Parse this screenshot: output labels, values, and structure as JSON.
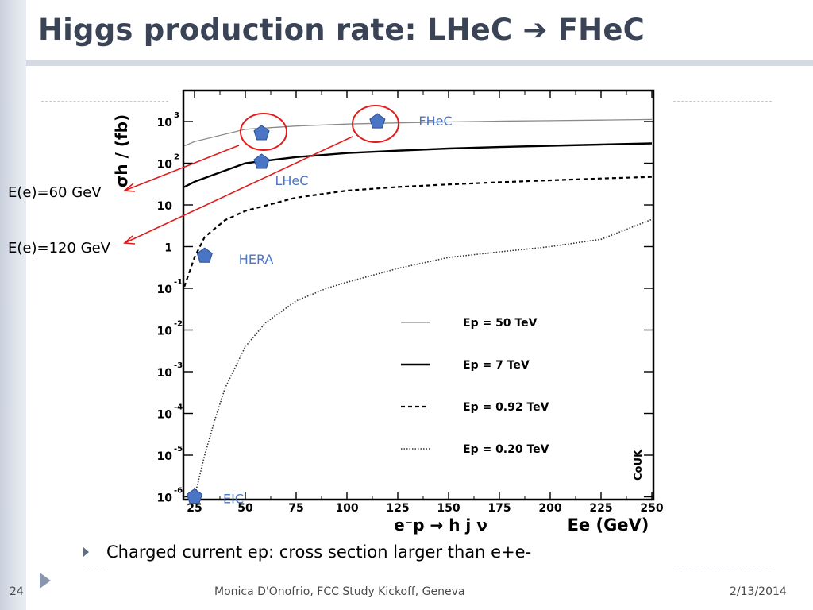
{
  "slide": {
    "title": "Higgs production rate: LHeC ➔ FHeC",
    "callouts": [
      "E(e)=60 GeV",
      "E(e)=120 GeV"
    ],
    "bullet": "Charged current ep: cross section larger than e+e-",
    "footer": {
      "page_number": "24",
      "center": "Monica D'Onofrio, FCC Study Kickoff, Geneva",
      "date": "2/13/2014"
    },
    "colors": {
      "title": "#3a4456",
      "annotation_red": "#e21b1b",
      "marker_blue": "#4a74c4",
      "label_blue": "#4a74c4"
    }
  },
  "chart_data": {
    "type": "line",
    "y_title": "σh / (fb)",
    "x_title_process": "e⁻p → h j ν",
    "x_title_unit": "Ee (GeV)",
    "x_ticks": [
      25,
      50,
      75,
      100,
      125,
      150,
      175,
      200,
      225,
      250
    ],
    "y_ticks": [
      {
        "base": "10",
        "exp": "3",
        "v": 1000
      },
      {
        "base": "10",
        "exp": "2",
        "v": 100
      },
      {
        "base": "10",
        "exp": "",
        "v": 10
      },
      {
        "base": "1",
        "exp": "",
        "v": 1
      },
      {
        "base": "10",
        "exp": "-1",
        "v": 0.1
      },
      {
        "base": "10",
        "exp": "-2",
        "v": 0.01
      },
      {
        "base": "10",
        "exp": "-3",
        "v": 0.001
      },
      {
        "base": "10",
        "exp": "-4",
        "v": 0.0001
      },
      {
        "base": "10",
        "exp": "-5",
        "v": 1e-05
      },
      {
        "base": "10",
        "exp": "-6",
        "v": 1e-06
      }
    ],
    "xlim": [
      20,
      250
    ],
    "ylog": true,
    "ylim": [
      1e-06,
      3000
    ],
    "watermark": "CoUK",
    "series": [
      {
        "name": "Ep = 50 TeV",
        "style": "thin-solid",
        "x": [
          20,
          25,
          50,
          75,
          100,
          125,
          150,
          175,
          200,
          225,
          250
        ],
        "y": [
          260,
          330,
          650,
          780,
          870,
          930,
          980,
          1020,
          1050,
          1080,
          1120
        ]
      },
      {
        "name": "Ep = 7 TeV",
        "style": "thick-solid",
        "x": [
          20,
          25,
          50,
          75,
          100,
          125,
          150,
          175,
          200,
          225,
          250
        ],
        "y": [
          27,
          36,
          100,
          140,
          175,
          200,
          225,
          245,
          262,
          280,
          300
        ]
      },
      {
        "name": "Ep = 0.92 TeV",
        "style": "dashed",
        "x": [
          20,
          25,
          30,
          40,
          50,
          75,
          100,
          125,
          150,
          175,
          200,
          225,
          250
        ],
        "y": [
          0.11,
          0.55,
          1.7,
          4.3,
          7.2,
          15,
          22,
          27,
          31,
          35,
          39,
          43,
          47
        ]
      },
      {
        "name": "Ep = 0.20 TeV",
        "style": "dotted",
        "x": [
          20,
          25,
          30,
          35,
          40,
          50,
          60,
          75,
          90,
          100,
          125,
          150,
          175,
          200,
          225,
          250
        ],
        "y": [
          1e-06,
          1e-06,
          1e-05,
          7e-05,
          0.0004,
          0.004,
          0.015,
          0.05,
          0.1,
          0.14,
          0.3,
          0.55,
          0.75,
          1.0,
          1.5,
          4.5
        ]
      }
    ],
    "points": [
      {
        "label": "FHeC",
        "x": 115,
        "y": 1000
      },
      {
        "label": "",
        "x": 58,
        "y": 520
      },
      {
        "label": "LHeC",
        "x": 58,
        "y": 107
      },
      {
        "label": "HERA",
        "x": 30,
        "y": 0.6
      },
      {
        "label": "EIC",
        "x": 25,
        "y": 1e-06
      }
    ]
  }
}
